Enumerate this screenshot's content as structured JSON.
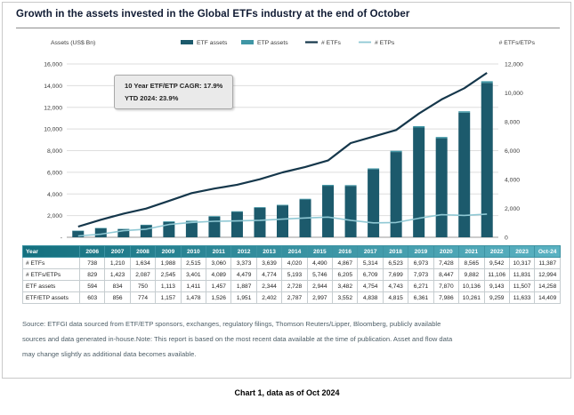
{
  "title": "Growth in the assets invested in the Global ETFs industry at the end of October",
  "annotation": {
    "line1": "10 Year ETF/ETP CAGR: 17.9%",
    "line2": "YTD 2024: 23.9%"
  },
  "chart_data": {
    "type": "combo-bar-line",
    "categories": [
      "2006",
      "2007",
      "2008",
      "2009",
      "2010",
      "2011",
      "2012",
      "2013",
      "2014",
      "2015",
      "2016",
      "2017",
      "2018",
      "2019",
      "2020",
      "2021",
      "2022",
      "2023",
      "Oct-24"
    ],
    "left_axis": {
      "label": "Assets (US$ Bn)",
      "min": 0,
      "max": 16000,
      "step": 2000,
      "zero_label": "-"
    },
    "right_axis": {
      "label": "# ETFs/ETPs",
      "min": 0,
      "max": 12000,
      "step": 2000,
      "zero_label": "0"
    },
    "grid": true,
    "legend_position": "top",
    "series": [
      {
        "name": "ETF assets",
        "type": "bar",
        "stack": true,
        "axis": "left",
        "color": "#1c5a6c",
        "values": [
          594,
          834,
          750,
          1113,
          1411,
          1457,
          1887,
          2344,
          2728,
          2944,
          3482,
          4754,
          4743,
          6271,
          7870,
          10136,
          9143,
          11507,
          14258
        ]
      },
      {
        "name": "ETP assets",
        "type": "bar",
        "stack": true,
        "axis": "left",
        "color": "#3f96a5",
        "values": [
          9,
          22,
          24,
          44,
          67,
          69,
          64,
          58,
          59,
          53,
          70,
          84,
          72,
          90,
          116,
          125,
          116,
          126,
          151
        ]
      },
      {
        "name": "# ETFs",
        "type": "line",
        "axis": "right",
        "color": "#15374b",
        "values": [
          738,
          1210,
          1634,
          1988,
          2515,
          3060,
          3373,
          3639,
          4020,
          4490,
          4867,
          5314,
          6523,
          6973,
          7428,
          8565,
          9542,
          10317,
          11387
        ]
      },
      {
        "name": "# ETPs",
        "type": "line",
        "axis": "right",
        "color": "#8fc8d4",
        "values": [
          91,
          213,
          453,
          557,
          886,
          1029,
          1106,
          1135,
          1173,
          1256,
          1338,
          1395,
          1176,
          1000,
          1019,
          1317,
          1564,
          1514,
          1607
        ]
      }
    ]
  },
  "table": {
    "year_header": "Year",
    "years": [
      "2006",
      "2007",
      "2008",
      "2009",
      "2010",
      "2011",
      "2012",
      "2013",
      "2014",
      "2015",
      "2016",
      "2017",
      "2018",
      "2019",
      "2020",
      "2021",
      "2022",
      "2023",
      "Oct-24"
    ],
    "rows": [
      {
        "label": "# ETFs",
        "values": [
          "738",
          "1,210",
          "1,634",
          "1,988",
          "2,515",
          "3,060",
          "3,373",
          "3,639",
          "4,020",
          "4,490",
          "4,867",
          "5,314",
          "6,523",
          "6,973",
          "7,428",
          "8,565",
          "9,542",
          "10,317",
          "11,387"
        ]
      },
      {
        "label": "# ETFs/ETPs",
        "values": [
          "829",
          "1,423",
          "2,087",
          "2,545",
          "3,401",
          "4,089",
          "4,479",
          "4,774",
          "5,193",
          "5,746",
          "6,205",
          "6,709",
          "7,699",
          "7,973",
          "8,447",
          "9,882",
          "11,106",
          "11,831",
          "12,994"
        ]
      },
      {
        "label": "ETF assets",
        "values": [
          "594",
          "834",
          "750",
          "1,113",
          "1,411",
          "1,457",
          "1,887",
          "2,344",
          "2,728",
          "2,944",
          "3,482",
          "4,754",
          "4,743",
          "6,271",
          "7,870",
          "10,136",
          "9,143",
          "11,507",
          "14,258"
        ]
      },
      {
        "label": "ETF/ETP assets",
        "values": [
          "603",
          "856",
          "774",
          "1,157",
          "1,478",
          "1,526",
          "1,951",
          "2,402",
          "2,787",
          "2,997",
          "3,552",
          "4,838",
          "4,815",
          "6,361",
          "7,986",
          "10,261",
          "9,259",
          "11,633",
          "14,409"
        ]
      }
    ]
  },
  "source": {
    "line1": "Source: ETFGI data sourced from ETF/ETP sponsors, exchanges, regulatory filings, Thomson Reuters/Lipper, Bloomberg, publicly available",
    "line2": "sources and data generated in-house.Note: This report is based on the most recent data available at the time of publication. Asset and flow data",
    "line3": "may change slightly as additional data becomes available."
  },
  "caption": "Chart 1, data as of Oct 2024"
}
